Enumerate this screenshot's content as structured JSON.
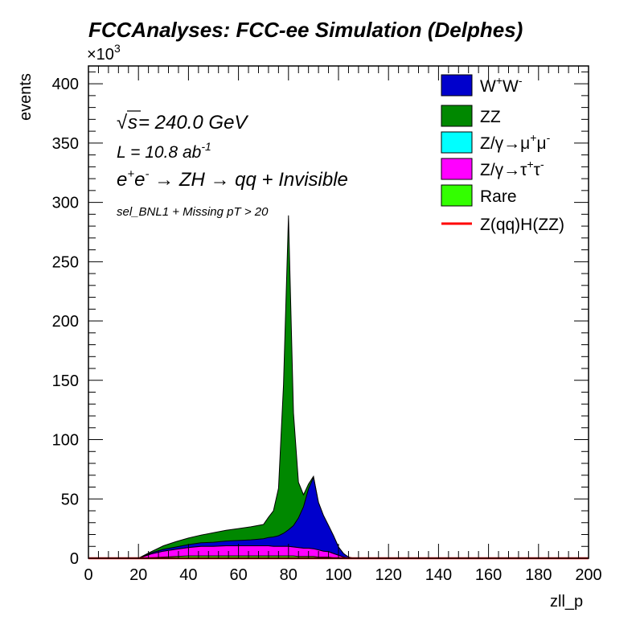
{
  "header": {
    "title": "FCCAnalyses: FCC-ee Simulation (Delphes)",
    "exponent_label_base": "×10",
    "exponent_label_sup": "3",
    "ylabel": "events",
    "xlabel": "zll_p"
  },
  "annotations": {
    "sqrt_symbol": "√",
    "sqrt_s": "s",
    "energy": " = 240.0 GeV",
    "lumi_base": "L = 10.8 ab",
    "lumi_sup": "-1",
    "process_e1": "e",
    "process_e1_sup": "+",
    "process_e2": "e",
    "process_e2_sup": "-",
    "process_rest": " → ZH  → qq + Invisible",
    "selection": "sel_BNL1 + Missing pT > 20"
  },
  "colors": {
    "ww": "#0000cc",
    "zz": "#008800",
    "mumu": "#00ffff",
    "tautau": "#ff00ff",
    "rare": "#33ff00",
    "signal": "#ff0000"
  },
  "legend": {
    "ww": {
      "base": "W",
      "sup1": "+",
      "mid": "W",
      "sup2": "-"
    },
    "zz": {
      "label": "ZZ"
    },
    "mumu": {
      "base": "Z/γ→μ",
      "sup1": "+",
      "mid": "μ",
      "sup2": "-"
    },
    "tautau": {
      "base": "Z/γ→τ",
      "sup1": "+",
      "mid": "τ",
      "sup2": "-"
    },
    "rare": {
      "label": "Rare"
    },
    "signal": {
      "label": "Z(qq)H(ZZ)"
    }
  },
  "chart_data": {
    "type": "area",
    "stacked": true,
    "xlabel": "zll_p",
    "ylabel": "events",
    "y_scale_multiplier": "×10^3",
    "xlim": [
      0,
      200
    ],
    "ylim": [
      0,
      415
    ],
    "x_ticks": [
      0,
      20,
      40,
      60,
      80,
      100,
      120,
      140,
      160,
      180,
      200
    ],
    "y_ticks": [
      0,
      50,
      100,
      150,
      200,
      250,
      300,
      350,
      400
    ],
    "legend_position": "top-right",
    "grid": false,
    "x": [
      20,
      25,
      30,
      35,
      40,
      45,
      50,
      55,
      60,
      65,
      70,
      72,
      74,
      76,
      78,
      80,
      82,
      84,
      86,
      88,
      90,
      92,
      94,
      96,
      98,
      100,
      102,
      104,
      106
    ],
    "series": [
      {
        "name": "Rare",
        "values": [
          0,
          0.5,
          1,
          1.5,
          2,
          2,
          2,
          2,
          2,
          2,
          2,
          2,
          2,
          2,
          2,
          2,
          2,
          1.5,
          1.5,
          1.5,
          1.5,
          1,
          1,
          1,
          0.5,
          0.5,
          0,
          0,
          0
        ]
      },
      {
        "name": "Z/γ→τ+τ-",
        "values": [
          0,
          3,
          5,
          6,
          7,
          8,
          8,
          8.5,
          8.5,
          8.5,
          8.5,
          8.5,
          8,
          8,
          8,
          8,
          7.5,
          7.5,
          7,
          7,
          6.5,
          6,
          5,
          4.5,
          3.5,
          2,
          1,
          0,
          0
        ]
      },
      {
        "name": "Z/γ→μ+μ-",
        "values": [
          0,
          0,
          0,
          0,
          0,
          0,
          0,
          0,
          0,
          0,
          0,
          0,
          0,
          0,
          0,
          0,
          0,
          0,
          0,
          0,
          0,
          0,
          0,
          0,
          0,
          0,
          0,
          0,
          0
        ]
      },
      {
        "name": "W+W-",
        "values": [
          0,
          1,
          1.5,
          2,
          2.5,
          3,
          3.5,
          4,
          4.5,
          5,
          6,
          7,
          8,
          9,
          11,
          14,
          18,
          25,
          35,
          50,
          60,
          40,
          30,
          22,
          15,
          7,
          3,
          1,
          0
        ]
      },
      {
        "name": "ZZ",
        "values": [
          0,
          1,
          3,
          4.5,
          5.5,
          6.5,
          8,
          9,
          10,
          11,
          12,
          17,
          22,
          40,
          125,
          265,
          95,
          30,
          10,
          4,
          1,
          0,
          0,
          0,
          0,
          0,
          0,
          0,
          0
        ]
      },
      {
        "name": "Z(qq)H(ZZ)",
        "values": [
          0,
          0,
          0,
          0,
          0,
          0,
          0,
          0,
          0,
          0,
          0,
          0,
          0,
          0,
          0,
          0,
          0,
          0,
          0,
          0,
          0,
          0,
          0,
          0,
          0,
          0,
          0,
          0,
          0
        ]
      }
    ]
  }
}
